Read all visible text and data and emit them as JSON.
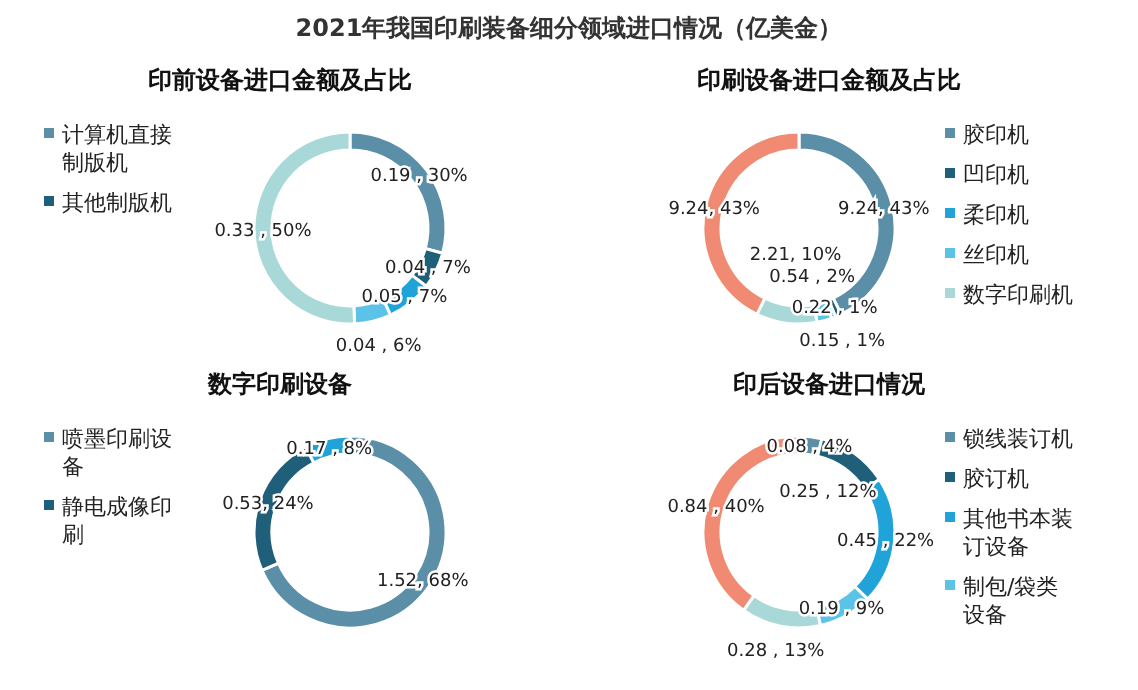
{
  "chart_data": [
    {
      "type": "donut",
      "annotations": [
        "2021年我国印刷装备细分领域进口情况（亿美金）"
      ],
      "title": "印前设备进口金额及占比",
      "categories": [
        "计算机直接制版机",
        "其他制版机",
        null,
        null,
        null
      ],
      "values": [
        0.19,
        0.04,
        0.05,
        0.04,
        0.33
      ],
      "value_labels": [
        "0.19 , 30%",
        "0.04 , 7%",
        "0.05 , 7%",
        "0.04 , 6%",
        "0.33 , 50%"
      ],
      "colors": [
        "#5b8fa8",
        "#1f5f7a",
        "#1fa3d9",
        "#5bc3e8",
        "#a8d8d8"
      ],
      "legend": "left"
    },
    {
      "type": "donut",
      "title": "印刷设备进口金额及占比",
      "categories": [
        "胶印机",
        "凹印机",
        "柔印机",
        "丝印机",
        "数字印刷机",
        null
      ],
      "values": [
        9.24,
        0.22,
        0.15,
        0.54,
        2.21,
        9.24
      ],
      "value_labels": [
        "9.24, 43%",
        "0.22 , 1%",
        "0.15 , 1%",
        "0.54 , 2%",
        "2.21, 10%",
        "9.24, 43%"
      ],
      "colors": [
        "#5b8fa8",
        "#1f5f7a",
        "#1fa3d9",
        "#5bc3e8",
        "#a8d8d8",
        "#f08a72"
      ],
      "legend": "right"
    },
    {
      "type": "donut",
      "title": "数字印刷设备",
      "categories": [
        "喷墨印刷设备",
        "静电成像印刷",
        null
      ],
      "values": [
        1.52,
        0.53,
        0.17
      ],
      "value_labels": [
        "1.52, 68%",
        "0.53, 24%",
        "0.17 , 8%"
      ],
      "colors": [
        "#5b8fa8",
        "#1f5f7a",
        "#1fa3d9"
      ],
      "legend": "left"
    },
    {
      "type": "donut",
      "title": "印后设备进口情况",
      "categories": [
        "锁线装订机",
        "胶订机",
        "其他书本装订设备",
        "制包/袋类设备",
        null,
        null
      ],
      "values": [
        0.08,
        0.25,
        0.45,
        0.19,
        0.28,
        0.84
      ],
      "value_labels": [
        "0.08 , 4%",
        "0.25 , 12%",
        "0.45 , 22%",
        "0.19 , 9%",
        "0.28 , 13%",
        "0.84 , 40%"
      ],
      "colors": [
        "#5b8fa8",
        "#1f5f7a",
        "#1fa3d9",
        "#5bc3e8",
        "#a8d8d8",
        "#f08a72"
      ],
      "legend": "right"
    }
  ]
}
